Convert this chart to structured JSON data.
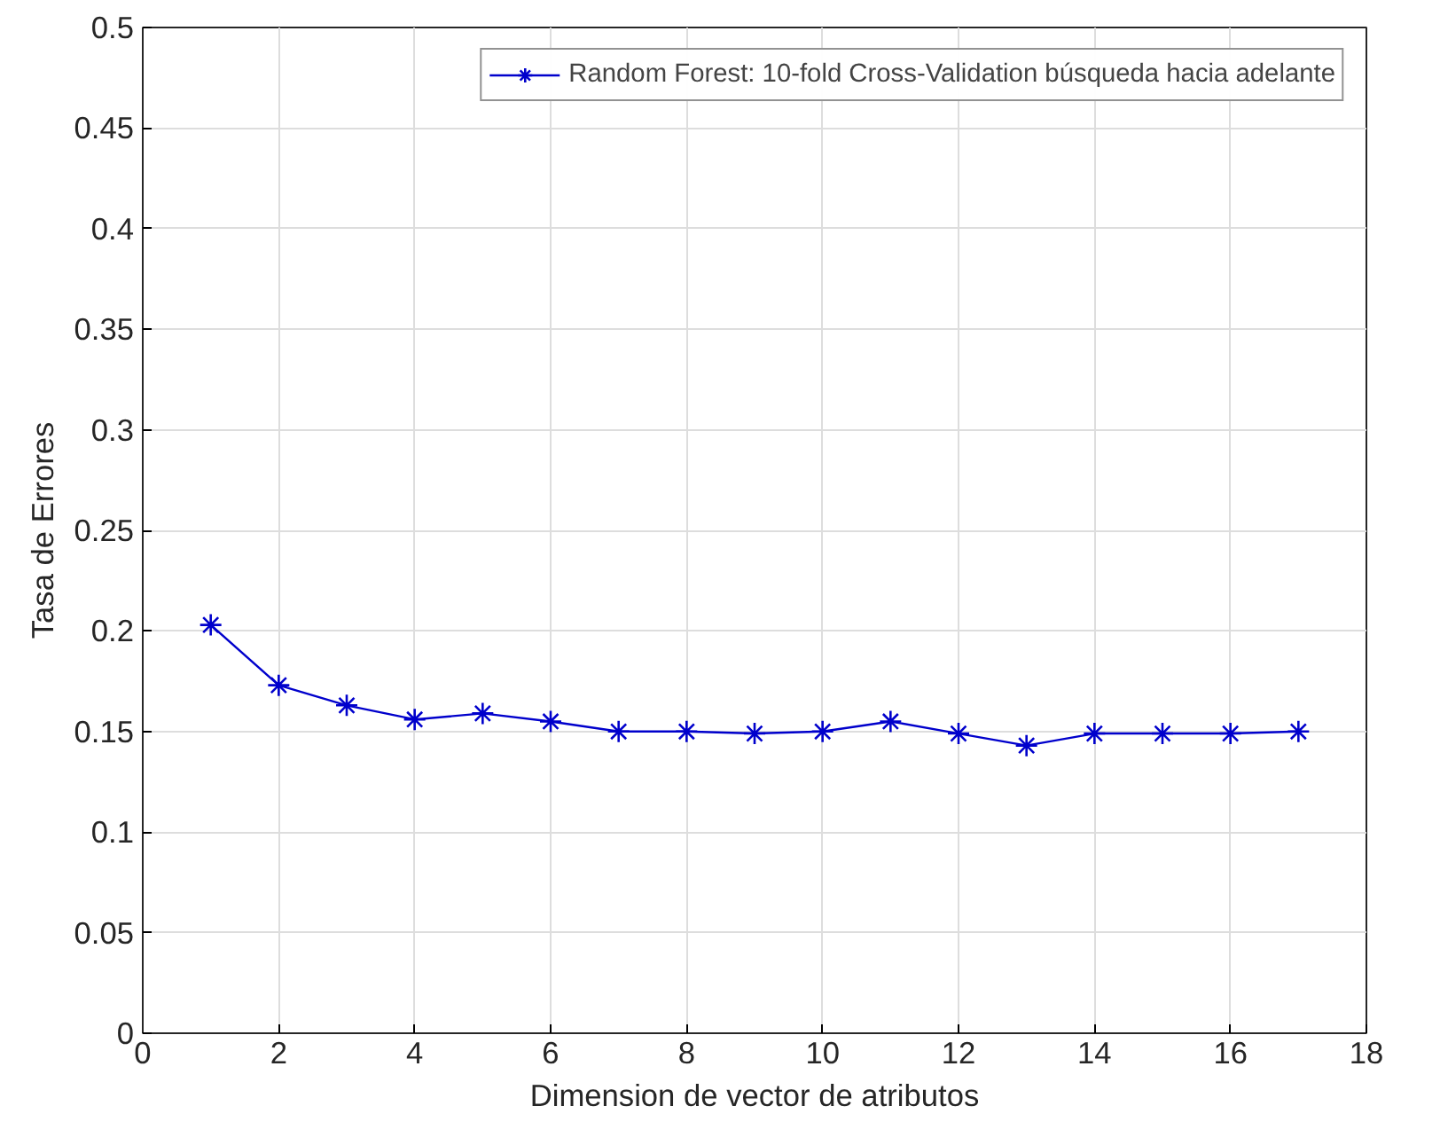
{
  "chart_data": {
    "type": "line",
    "xlabel": "Dimension de vector de atributos",
    "ylabel": "Tasa de Errores",
    "x": [
      1,
      2,
      3,
      4,
      5,
      6,
      7,
      8,
      9,
      10,
      11,
      12,
      13,
      14,
      15,
      16,
      17
    ],
    "series": [
      {
        "name": "Random Forest: 10-fold Cross-Validation búsqueda hacia adelante",
        "color": "#0000cc",
        "values": [
          0.203,
          0.173,
          0.163,
          0.156,
          0.159,
          0.155,
          0.15,
          0.15,
          0.149,
          0.15,
          0.155,
          0.149,
          0.143,
          0.149,
          0.149,
          0.149,
          0.15
        ]
      }
    ],
    "xlim": [
      0,
      18
    ],
    "xticks": [
      0,
      2,
      4,
      6,
      8,
      10,
      12,
      14,
      16,
      18
    ],
    "ylim": [
      0,
      0.5
    ],
    "yticks": [
      0,
      0.05,
      0.1,
      0.15,
      0.2,
      0.25,
      0.3,
      0.35,
      0.4,
      0.45,
      0.5
    ],
    "grid": true,
    "legend": "top right",
    "marker": "cross",
    "line_style": "solid"
  }
}
